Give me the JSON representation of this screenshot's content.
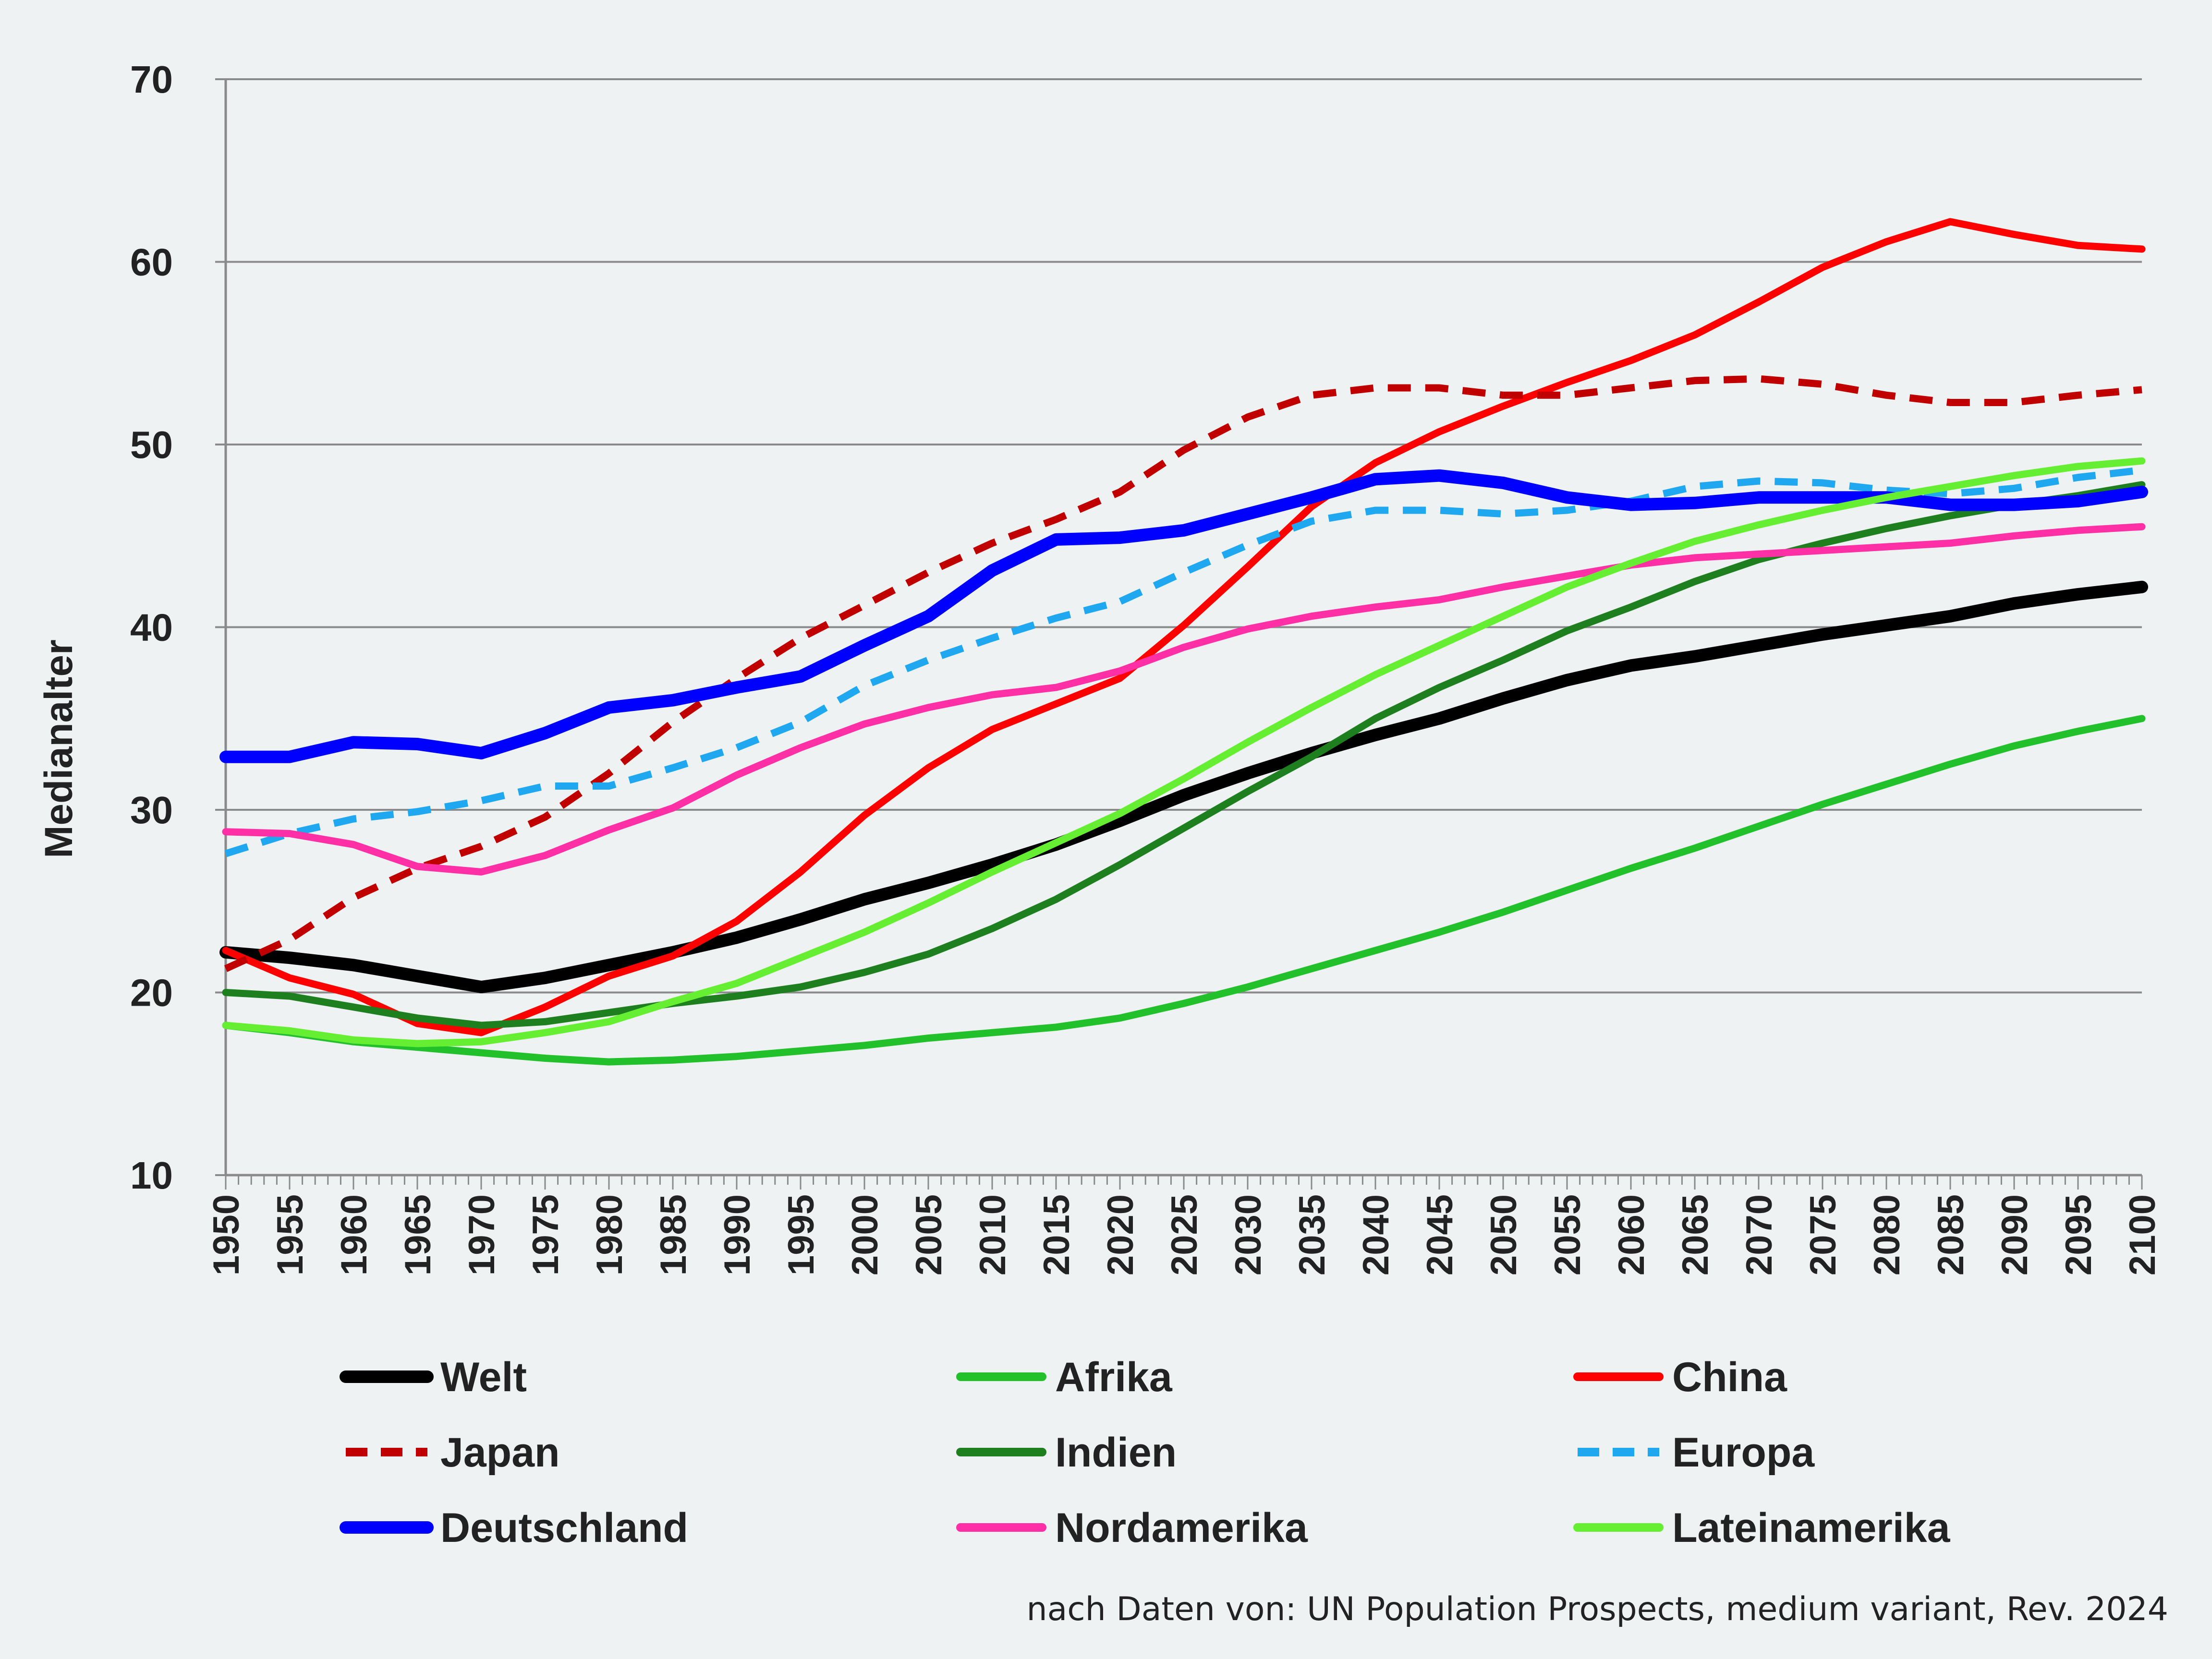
{
  "chart_data": {
    "type": "line",
    "title": "",
    "xlabel": "",
    "ylabel": "Medianalter",
    "xlim": [
      1950,
      2100
    ],
    "ylim": [
      10,
      70
    ],
    "yticks": [
      10,
      20,
      30,
      40,
      50,
      60,
      70
    ],
    "xtick_labels": [
      1950,
      1955,
      1960,
      1965,
      1970,
      1975,
      1980,
      1985,
      1990,
      1995,
      2000,
      2005,
      2010,
      2015,
      2020,
      2025,
      2030,
      2035,
      2040,
      2045,
      2050,
      2055,
      2060,
      2065,
      2070,
      2075,
      2080,
      2085,
      2090,
      2095,
      2100
    ],
    "grid": "horizontal",
    "legend_position": "bottom",
    "source_note": "nach Daten von: UN Population Prospects, medium variant, Rev. 2024",
    "x": [
      1950,
      1955,
      1960,
      1965,
      1970,
      1975,
      1980,
      1985,
      1990,
      1995,
      2000,
      2005,
      2010,
      2015,
      2020,
      2025,
      2030,
      2035,
      2040,
      2045,
      2050,
      2055,
      2060,
      2065,
      2070,
      2075,
      2080,
      2085,
      2090,
      2095,
      2100
    ],
    "series": [
      {
        "name": "Welt",
        "color": "#000000",
        "dash": "solid",
        "width": "thick",
        "values": [
          22.2,
          21.9,
          21.5,
          20.9,
          20.3,
          20.8,
          21.5,
          22.2,
          23.0,
          24.0,
          25.1,
          26.0,
          27.0,
          28.1,
          29.4,
          30.8,
          32.0,
          33.1,
          34.1,
          35.0,
          36.1,
          37.1,
          37.9,
          38.4,
          39.0,
          39.6,
          40.1,
          40.6,
          41.3,
          41.8,
          42.2
        ]
      },
      {
        "name": "Afrika",
        "color": "#22c02a",
        "dash": "solid",
        "width": "normal",
        "values": [
          18.2,
          17.8,
          17.3,
          17.0,
          16.7,
          16.4,
          16.2,
          16.3,
          16.5,
          16.8,
          17.1,
          17.5,
          17.8,
          18.1,
          18.6,
          19.4,
          20.3,
          21.3,
          22.3,
          23.3,
          24.4,
          25.6,
          26.8,
          27.9,
          29.1,
          30.3,
          31.4,
          32.5,
          33.5,
          34.3,
          35.0
        ]
      },
      {
        "name": "China",
        "color": "#ff0000",
        "dash": "solid",
        "width": "normal",
        "values": [
          22.3,
          20.8,
          19.9,
          18.3,
          17.8,
          19.2,
          20.9,
          22.0,
          23.9,
          26.6,
          29.7,
          32.3,
          34.4,
          35.8,
          37.2,
          40.1,
          43.3,
          46.6,
          49.0,
          50.7,
          52.1,
          53.4,
          54.6,
          56.0,
          57.8,
          59.7,
          61.1,
          62.2,
          61.5,
          60.9,
          60.7
        ]
      },
      {
        "name": "Japan",
        "color": "#c00000",
        "dash": "dashed",
        "width": "normal",
        "values": [
          21.3,
          22.9,
          25.2,
          26.8,
          28.0,
          29.6,
          32.0,
          34.8,
          37.2,
          39.4,
          41.2,
          43.0,
          44.6,
          45.9,
          47.4,
          49.7,
          51.5,
          52.7,
          53.1,
          53.1,
          52.7,
          52.7,
          53.1,
          53.5,
          53.6,
          53.3,
          52.7,
          52.3,
          52.3,
          52.7,
          53.0
        ]
      },
      {
        "name": "Indien",
        "color": "#1e7f1e",
        "dash": "solid",
        "width": "normal",
        "values": [
          20.0,
          19.8,
          19.2,
          18.6,
          18.2,
          18.4,
          18.9,
          19.4,
          19.8,
          20.3,
          21.1,
          22.1,
          23.5,
          25.1,
          27.0,
          29.0,
          31.0,
          32.9,
          35.0,
          36.7,
          38.2,
          39.8,
          41.1,
          42.5,
          43.7,
          44.6,
          45.4,
          46.1,
          46.7,
          47.2,
          47.8
        ]
      },
      {
        "name": "Europa",
        "color": "#1fa8f0",
        "dash": "dashed",
        "width": "normal",
        "values": [
          27.6,
          28.7,
          29.5,
          29.9,
          30.5,
          31.3,
          31.3,
          32.3,
          33.4,
          34.8,
          36.8,
          38.2,
          39.4,
          40.5,
          41.4,
          43.0,
          44.5,
          45.8,
          46.4,
          46.4,
          46.2,
          46.4,
          46.9,
          47.7,
          48.0,
          47.9,
          47.5,
          47.3,
          47.6,
          48.2,
          48.6
        ]
      },
      {
        "name": "Deutschland",
        "color": "#0000ff",
        "dash": "solid",
        "width": "thick",
        "values": [
          32.9,
          32.9,
          33.7,
          33.6,
          33.1,
          34.2,
          35.6,
          36.0,
          36.7,
          37.3,
          39.0,
          40.6,
          43.1,
          44.8,
          44.9,
          45.3,
          46.2,
          47.1,
          48.1,
          48.3,
          47.9,
          47.1,
          46.7,
          46.8,
          47.1,
          47.1,
          47.1,
          46.7,
          46.7,
          46.9,
          47.4
        ]
      },
      {
        "name": "Nordamerika",
        "color": "#ff2fa6",
        "dash": "solid",
        "width": "normal",
        "values": [
          28.8,
          28.7,
          28.1,
          26.9,
          26.6,
          27.5,
          28.9,
          30.1,
          31.9,
          33.4,
          34.7,
          35.6,
          36.3,
          36.7,
          37.6,
          38.9,
          39.9,
          40.6,
          41.1,
          41.5,
          42.2,
          42.8,
          43.4,
          43.8,
          44.0,
          44.2,
          44.4,
          44.6,
          45.0,
          45.3,
          45.5
        ]
      },
      {
        "name": "Lateinamerika",
        "color": "#66ee33",
        "dash": "solid",
        "width": "normal",
        "values": [
          18.2,
          17.9,
          17.4,
          17.2,
          17.3,
          17.8,
          18.4,
          19.5,
          20.5,
          21.9,
          23.3,
          24.9,
          26.6,
          28.2,
          29.8,
          31.7,
          33.7,
          35.6,
          37.4,
          39.0,
          40.6,
          42.2,
          43.5,
          44.7,
          45.6,
          46.4,
          47.1,
          47.7,
          48.3,
          48.8,
          49.1
        ]
      }
    ]
  }
}
